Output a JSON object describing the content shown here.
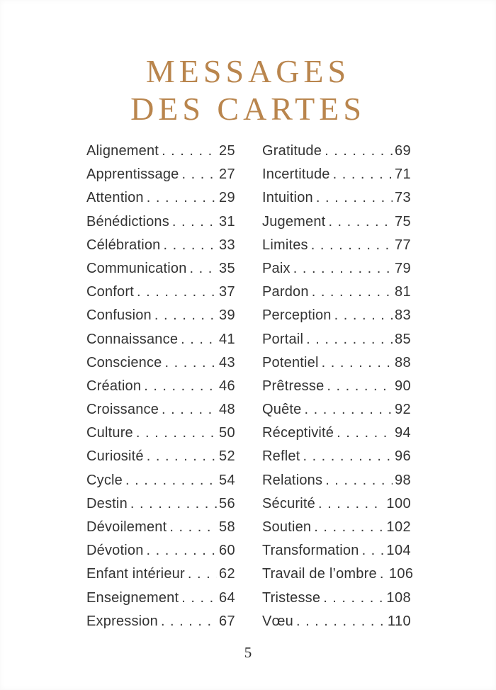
{
  "page": {
    "title_line1": "MESSAGES",
    "title_line2": "DES CARTES",
    "page_number": "5",
    "accent_color": "#b9854d"
  },
  "toc": {
    "left_column": [
      {
        "label": "Alignement",
        "page": "25"
      },
      {
        "label": "Apprentissage",
        "page": "27"
      },
      {
        "label": "Attention",
        "page": "29"
      },
      {
        "label": "Bénédictions",
        "page": "31"
      },
      {
        "label": "Célébration",
        "page": "33"
      },
      {
        "label": "Communication",
        "page": "35"
      },
      {
        "label": "Confort",
        "page": "37"
      },
      {
        "label": "Confusion",
        "page": "39"
      },
      {
        "label": "Connaissance",
        "page": "41"
      },
      {
        "label": "Conscience",
        "page": "43"
      },
      {
        "label": "Création",
        "page": "46"
      },
      {
        "label": "Croissance",
        "page": "48"
      },
      {
        "label": "Culture",
        "page": "50"
      },
      {
        "label": "Curiosité",
        "page": "52"
      },
      {
        "label": "Cycle",
        "page": "54"
      },
      {
        "label": "Destin",
        "page": "56"
      },
      {
        "label": "Dévoilement",
        "page": "58"
      },
      {
        "label": "Dévotion",
        "page": "60"
      },
      {
        "label": "Enfant intérieur",
        "page": "62"
      },
      {
        "label": "Enseignement",
        "page": "64"
      },
      {
        "label": "Expression",
        "page": "67"
      }
    ],
    "right_column": [
      {
        "label": "Gratitude",
        "page": "69"
      },
      {
        "label": "Incertitude",
        "page": "71"
      },
      {
        "label": "Intuition",
        "page": "73"
      },
      {
        "label": "Jugement",
        "page": "75"
      },
      {
        "label": "Limites",
        "page": "77"
      },
      {
        "label": "Paix",
        "page": "79"
      },
      {
        "label": "Pardon",
        "page": "81"
      },
      {
        "label": "Perception",
        "page": "83"
      },
      {
        "label": "Portail",
        "page": "85"
      },
      {
        "label": "Potentiel",
        "page": "88"
      },
      {
        "label": "Prêtresse",
        "page": "90"
      },
      {
        "label": "Quête",
        "page": "92"
      },
      {
        "label": "Réceptivité",
        "page": "94"
      },
      {
        "label": "Reflet",
        "page": "96"
      },
      {
        "label": "Relations",
        "page": "98"
      },
      {
        "label": "Sécurité",
        "page": "100"
      },
      {
        "label": "Soutien",
        "page": "102"
      },
      {
        "label": "Transformation",
        "page": "104"
      },
      {
        "label": "Travail de l’ombre",
        "page": "106"
      },
      {
        "label": "Tristesse",
        "page": "108"
      },
      {
        "label": "Vœu",
        "page": "110"
      }
    ]
  }
}
